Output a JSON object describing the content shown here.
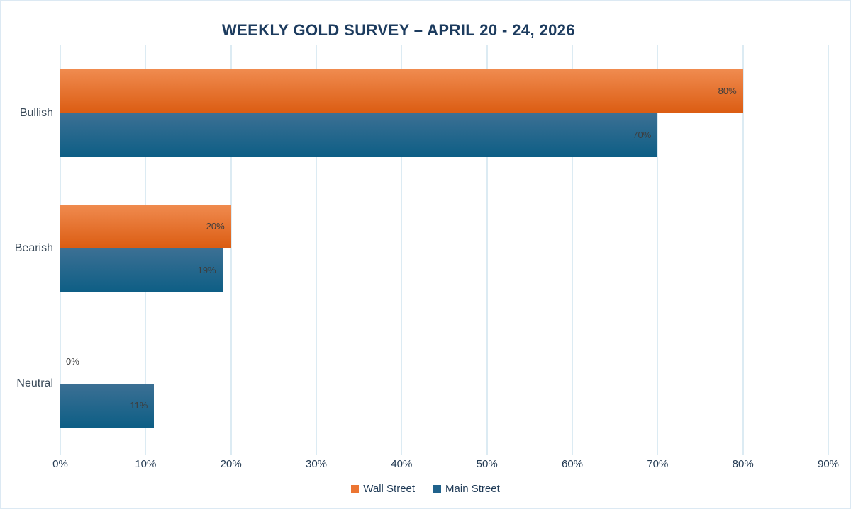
{
  "title": "WEEKLY GOLD SURVEY – APRIL 20 - 24, 2026",
  "chart_data": {
    "type": "bar",
    "orientation": "horizontal",
    "title": "WEEKLY GOLD SURVEY – APRIL 20 - 24, 2026",
    "categories": [
      "Bullish",
      "Bearish",
      "Neutral"
    ],
    "series": [
      {
        "name": "Wall Street",
        "values": [
          80,
          20,
          0
        ],
        "color_top": "#F08B4F",
        "color_bottom": "#DB5C12",
        "legend_color": "#EC7532"
      },
      {
        "name": "Main Street",
        "values": [
          70,
          19,
          11
        ],
        "color_top": "#3C7094",
        "color_bottom": "#0D5E85",
        "legend_color": "#20628C"
      }
    ],
    "value_suffix": "%",
    "xlabel": "",
    "ylabel": "",
    "xlim": [
      0,
      90
    ],
    "x_ticks": [
      "0%",
      "10%",
      "20%",
      "30%",
      "40%",
      "50%",
      "60%",
      "70%",
      "80%",
      "90%"
    ],
    "grid": "vertical",
    "legend_position": "bottom"
  },
  "colors": {
    "title": "#1C3B5E",
    "grid": "#DCEBF3",
    "frame_border": "#DCE9F3",
    "tick_label": "#243B53",
    "category_label": "#3A4A59",
    "data_label": "#3D3D3D",
    "background": "#FFFFFF"
  }
}
